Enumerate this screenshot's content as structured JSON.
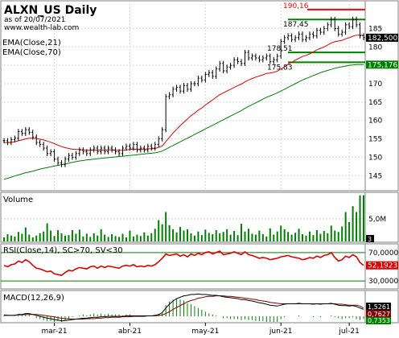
{
  "header": {
    "title": "ALXN_US Daily",
    "asof": "as of 20/07/2021",
    "website": "www.wealth-lab.com",
    "ema21_label": "EMA(Close,21)",
    "ema70_label": "EMA(Close,70)"
  },
  "price_levels": [
    {
      "label": "190,16",
      "value": 190.16,
      "color": "#ff0000"
    },
    {
      "label": "187,45",
      "value": 187.45,
      "color": "#000000"
    },
    {
      "label": "178,51",
      "value": 178.51,
      "color": "#000000"
    },
    {
      "label": "175,83",
      "value": 175.83,
      "color": "#000000"
    }
  ],
  "price_tags": [
    {
      "label": "182,500",
      "value": 182.5,
      "bg": "#000000",
      "fg": "#ffffff"
    },
    {
      "label": "175,176",
      "value": 175.176,
      "bg": "#008000",
      "fg": "#ffffff"
    }
  ],
  "volume_panel": {
    "title": "Volume",
    "tick": "5,0M",
    "tag": "3"
  },
  "rsi_panel": {
    "title": "RSI(Close,14), SC>70, SV<30",
    "ticks": [
      "70,0000",
      "30,0000"
    ],
    "tag": "52,1923"
  },
  "macd_panel": {
    "title": "MACD(12,26,9)",
    "tags": [
      "1,5261",
      "0,7627",
      "0,7353"
    ]
  },
  "colors": {
    "ema21": "#e00000",
    "ema70": "#008000",
    "volume": "#008000",
    "rsi": "#e00000",
    "macd_line": "#000000",
    "macd_signal": "#800000",
    "macd_hist": "#008000",
    "level_line": "#008000"
  },
  "chart_data": [
    {
      "type": "line",
      "title": "ALXN_US Daily",
      "subtitle": "as of 20/07/2021",
      "x_tick_labels": [
        "mar-21",
        "abr-21",
        "may-21",
        "jun-21",
        "jul-21"
      ],
      "x_tick_indices": [
        14,
        35,
        56,
        77,
        96
      ],
      "y_ticks": [
        145,
        150,
        155,
        160,
        165,
        170,
        175,
        180,
        185
      ],
      "ylim": [
        142,
        191
      ],
      "grid": true,
      "series": [
        {
          "name": "Close",
          "values": [
            154.5,
            154.0,
            154.8,
            155.2,
            157.0,
            156.5,
            157.5,
            156.8,
            155.5,
            154.0,
            153.5,
            152.5,
            151.0,
            151.5,
            149.5,
            148.5,
            148.0,
            149.5,
            150.5,
            150.0,
            151.0,
            152.0,
            151.5,
            151.0,
            152.0,
            152.5,
            151.5,
            152.5,
            151.5,
            152.5,
            152.0,
            151.5,
            151.0,
            152.5,
            153.0,
            152.5,
            153.5,
            152.0,
            152.5,
            152.0,
            153.0,
            152.5,
            153.5,
            155.0,
            157.5,
            166.5,
            167.0,
            168.5,
            169.0,
            168.0,
            169.5,
            168.5,
            170.0,
            170.0,
            171.5,
            171.0,
            172.5,
            173.0,
            172.0,
            174.0,
            175.5,
            173.5,
            174.5,
            175.0,
            176.5,
            176.0,
            175.5,
            178.5,
            177.0,
            177.5,
            177.0,
            176.5,
            177.0,
            177.5,
            176.0,
            176.5,
            177.5,
            181.5,
            182.5,
            183.0,
            182.0,
            182.5,
            183.5,
            182.0,
            182.5,
            183.5,
            183.0,
            184.5,
            184.0,
            185.0,
            186.0,
            187.5,
            185.0,
            183.5,
            184.0,
            186.0,
            185.5,
            187.5,
            186.0,
            183.0,
            182.5
          ]
        },
        {
          "name": "EMA(Close,21)",
          "values": [
            154.0,
            154.0,
            154.1,
            154.2,
            154.5,
            154.7,
            155.0,
            155.2,
            155.2,
            155.1,
            154.9,
            154.7,
            154.4,
            154.1,
            153.7,
            153.3,
            152.9,
            152.6,
            152.4,
            152.2,
            152.1,
            152.1,
            152.0,
            151.9,
            151.9,
            152.0,
            151.9,
            152.0,
            151.9,
            152.0,
            152.0,
            151.9,
            151.9,
            151.9,
            152.0,
            152.1,
            152.2,
            152.2,
            152.2,
            152.2,
            152.3,
            152.3,
            152.4,
            152.7,
            153.1,
            154.3,
            155.4,
            156.6,
            157.6,
            158.6,
            159.5,
            160.4,
            161.3,
            162.0,
            162.8,
            163.4,
            164.2,
            164.9,
            165.6,
            166.3,
            167.0,
            167.5,
            168.0,
            168.5,
            169.0,
            169.5,
            169.9,
            170.5,
            171.0,
            171.4,
            171.8,
            172.1,
            172.4,
            172.8,
            172.9,
            173.1,
            173.4,
            174.0,
            174.6,
            175.3,
            175.8,
            176.4,
            176.9,
            177.4,
            177.7,
            178.1,
            178.6,
            179.2,
            179.6,
            180.0,
            180.5,
            181.1,
            181.4,
            181.6,
            181.8,
            182.2,
            182.5,
            182.9,
            183.2,
            183.2,
            183.2
          ]
        },
        {
          "name": "EMA(Close,70)",
          "values": [
            144.0,
            144.3,
            144.6,
            144.9,
            145.2,
            145.5,
            145.8,
            146.0,
            146.2,
            146.5,
            146.8,
            147.0,
            147.2,
            147.4,
            147.6,
            147.8,
            148.0,
            148.2,
            148.4,
            148.6,
            148.8,
            149.0,
            149.1,
            149.3,
            149.4,
            149.5,
            149.6,
            149.7,
            149.8,
            149.9,
            150.0,
            150.1,
            150.2,
            150.3,
            150.4,
            150.5,
            150.6,
            150.7,
            150.8,
            150.9,
            151.0,
            151.1,
            151.2,
            151.4,
            151.7,
            152.2,
            152.7,
            153.2,
            153.7,
            154.2,
            154.7,
            155.2,
            155.7,
            156.2,
            156.7,
            157.2,
            157.7,
            158.2,
            158.7,
            159.2,
            159.7,
            160.2,
            160.7,
            161.2,
            161.7,
            162.2,
            162.7,
            163.3,
            163.8,
            164.3,
            164.8,
            165.3,
            165.8,
            166.3,
            166.7,
            167.1,
            167.5,
            168.0,
            168.5,
            169.0,
            169.5,
            170.0,
            170.5,
            171.0,
            171.4,
            171.8,
            172.2,
            172.6,
            173.0,
            173.3,
            173.6,
            173.9,
            174.2,
            174.4,
            174.6,
            174.8,
            175.0,
            175.1,
            175.2,
            175.2,
            175.2
          ]
        }
      ]
    },
    {
      "type": "bar",
      "title": "Volume",
      "y_ticks": [
        5000000
      ],
      "ylim": [
        0,
        10500000
      ],
      "series": [
        {
          "name": "Volume",
          "values": [
            900000,
            1600000,
            1300000,
            1100000,
            2100000,
            1700000,
            3100000,
            1500000,
            900000,
            1300000,
            1800000,
            2200000,
            4000000,
            2400000,
            1200000,
            2500000,
            1800000,
            1300000,
            1400000,
            2500000,
            1700000,
            2600000,
            1100000,
            1700000,
            1000000,
            1800000,
            1300000,
            2700000,
            1500000,
            1000000,
            1600000,
            1200000,
            1000000,
            1700000,
            900000,
            2400000,
            1100000,
            1500000,
            1200000,
            2000000,
            1300000,
            1800000,
            2800000,
            4700000,
            3800000,
            6500000,
            3600000,
            2700000,
            2000000,
            3200000,
            2400000,
            2700000,
            1800000,
            1300000,
            2200000,
            1400000,
            2600000,
            1900000,
            1600000,
            2500000,
            1800000,
            2100000,
            2700000,
            1500000,
            2300000,
            1400000,
            3900000,
            2200000,
            2800000,
            1700000,
            1500000,
            2400000,
            1600000,
            1100000,
            2900000,
            1500000,
            2200000,
            3500000,
            2700000,
            2100000,
            1500000,
            1900000,
            2800000,
            1600000,
            1300000,
            2200000,
            1400000,
            2500000,
            1700000,
            2300000,
            1800000,
            3500000,
            2400000,
            2100000,
            3300000,
            6500000,
            4300000,
            7800000,
            6500000,
            10200000,
            10200000
          ]
        }
      ]
    },
    {
      "type": "line",
      "title": "RSI(Close,14), SC>70, SV<30",
      "y_ticks": [
        30,
        70
      ],
      "ylim": [
        20,
        80
      ],
      "series": [
        {
          "name": "RSI(Close,14)",
          "values": [
            52,
            50,
            53,
            54,
            58,
            56,
            60,
            57,
            52,
            48,
            47,
            45,
            43,
            44,
            40,
            39,
            38,
            42,
            45,
            44,
            47,
            49,
            48,
            47,
            50,
            51,
            48,
            51,
            49,
            51,
            50,
            49,
            48,
            51,
            52,
            51,
            53,
            50,
            51,
            50,
            52,
            51,
            53,
            57,
            62,
            68,
            66,
            67,
            68,
            65,
            67,
            64,
            68,
            66,
            69,
            67,
            70,
            71,
            68,
            70,
            72,
            67,
            68,
            69,
            71,
            69,
            67,
            71,
            67,
            66,
            64,
            62,
            63,
            62,
            60,
            61,
            62,
            64,
            65,
            66,
            64,
            63,
            62,
            60,
            61,
            63,
            62,
            65,
            63,
            66,
            67,
            70,
            63,
            58,
            60,
            65,
            63,
            67,
            64,
            56,
            52
          ]
        }
      ]
    },
    {
      "type": "line",
      "title": "MACD(12,26,9)",
      "ylim": [
        -1.2,
        5.2
      ],
      "series": [
        {
          "name": "MACD",
          "values": [
            0.3,
            0.2,
            0.2,
            0.2,
            0.4,
            0.4,
            0.6,
            0.6,
            0.4,
            0.2,
            0.0,
            -0.2,
            -0.4,
            -0.5,
            -0.7,
            -0.8,
            -1.0,
            -0.9,
            -0.8,
            -0.7,
            -0.6,
            -0.5,
            -0.4,
            -0.4,
            -0.3,
            -0.2,
            -0.2,
            -0.1,
            -0.1,
            0.0,
            0.0,
            0.0,
            0.0,
            0.0,
            0.1,
            0.1,
            0.1,
            0.1,
            0.1,
            0.1,
            0.1,
            0.1,
            0.2,
            0.4,
            0.8,
            1.8,
            2.6,
            3.3,
            3.8,
            4.1,
            4.4,
            4.5,
            4.7,
            4.7,
            4.8,
            4.7,
            4.7,
            4.6,
            4.5,
            4.5,
            4.4,
            4.2,
            4.1,
            4.0,
            3.9,
            3.8,
            3.6,
            3.6,
            3.4,
            3.3,
            3.1,
            2.9,
            2.8,
            2.6,
            2.4,
            2.3,
            2.2,
            2.4,
            2.6,
            2.7,
            2.7,
            2.7,
            2.8,
            2.7,
            2.7,
            2.7,
            2.6,
            2.7,
            2.6,
            2.7,
            2.7,
            2.8,
            2.6,
            2.4,
            2.3,
            2.3,
            2.2,
            2.3,
            2.1,
            1.8,
            1.5
          ]
        },
        {
          "name": "Signal",
          "values": [
            0.2,
            0.2,
            0.2,
            0.2,
            0.3,
            0.3,
            0.4,
            0.4,
            0.4,
            0.4,
            0.3,
            0.2,
            0.1,
            0.0,
            -0.1,
            -0.3,
            -0.4,
            -0.5,
            -0.5,
            -0.6,
            -0.6,
            -0.6,
            -0.6,
            -0.5,
            -0.5,
            -0.5,
            -0.4,
            -0.4,
            -0.3,
            -0.3,
            -0.2,
            -0.2,
            -0.2,
            -0.1,
            -0.1,
            -0.1,
            0.0,
            0.0,
            0.0,
            0.0,
            0.1,
            0.1,
            0.1,
            0.2,
            0.3,
            0.6,
            1.0,
            1.5,
            1.9,
            2.3,
            2.7,
            3.1,
            3.4,
            3.6,
            3.9,
            4.0,
            4.2,
            4.3,
            4.3,
            4.4,
            4.4,
            4.4,
            4.3,
            4.3,
            4.2,
            4.1,
            4.0,
            3.9,
            3.8,
            3.7,
            3.6,
            3.4,
            3.3,
            3.2,
            3.0,
            2.9,
            2.8,
            2.7,
            2.7,
            2.7,
            2.7,
            2.7,
            2.7,
            2.7,
            2.7,
            2.7,
            2.7,
            2.7,
            2.7,
            2.7,
            2.7,
            2.7,
            2.7,
            2.6,
            2.6,
            2.5,
            2.4,
            2.4,
            2.4,
            2.2,
            1.8
          ]
        }
      ]
    }
  ]
}
